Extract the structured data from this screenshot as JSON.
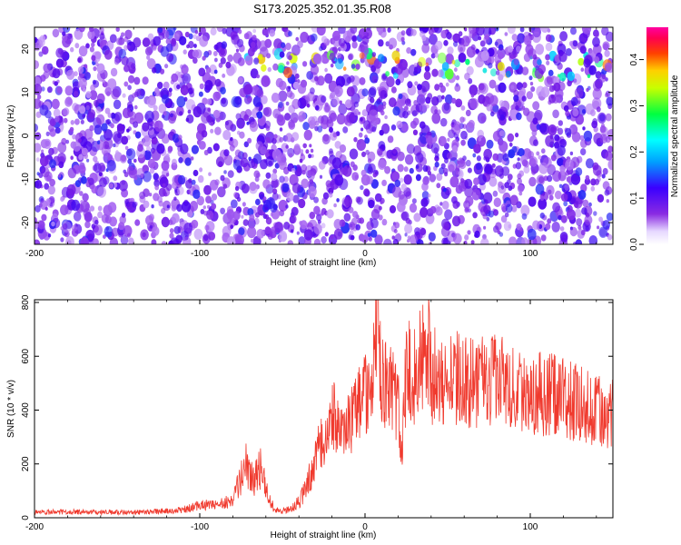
{
  "title": "S173.2025.352.01.35.R08",
  "chart_data": [
    {
      "type": "heatmap",
      "xlabel": "Height of straight line (km)",
      "ylabel": "Frequency (Hz)",
      "xlim": [
        -200,
        150
      ],
      "ylim": [
        -25,
        25
      ],
      "xticks": [
        -200,
        -100,
        0,
        100
      ],
      "yticks": [
        -20,
        -10,
        0,
        10,
        20
      ],
      "colorbar": {
        "label": "Normalized spectral amplitude",
        "range": [
          0.0,
          0.47
        ],
        "ticks": [
          0.0,
          0.1,
          0.2,
          0.3,
          0.4
        ],
        "colormap": "rainbow (white at low, purple, blue, cyan, green, yellow, red, magenta at high)"
      },
      "features": [
        {
          "x_range": [
            -75,
            150
          ],
          "y": 16,
          "description": "intermittent high-amplitude band near +16 Hz"
        },
        {
          "x_range": [
            -70,
            -60
          ],
          "y": 12,
          "description": "cyan/green blobs near +12 Hz"
        }
      ],
      "grid": false
    },
    {
      "type": "line",
      "xlabel": "Height of straight line (km)",
      "ylabel": "SNR (10 * v/v)",
      "xlim": [
        -200,
        150
      ],
      "ylim": [
        0,
        810
      ],
      "xticks": [
        -200,
        -100,
        0,
        100
      ],
      "yticks": [
        0,
        200,
        400,
        600,
        800
      ],
      "grid": false,
      "color": "#f03a2e",
      "series": [
        {
          "x": [
            -200,
            -180,
            -160,
            -140,
            -120,
            -110,
            -100,
            -90,
            -80,
            -75,
            -72,
            -68,
            -65,
            -62,
            -60,
            -55,
            -50,
            -45,
            -40,
            -35,
            -30,
            -28,
            -25,
            -20,
            -15,
            -10,
            -5,
            0,
            5,
            7,
            10,
            15,
            20,
            22,
            25,
            30,
            35,
            38,
            40,
            45,
            50,
            55,
            60,
            70,
            80,
            90,
            100,
            110,
            120,
            130,
            140,
            150
          ],
          "y": [
            20,
            22,
            20,
            20,
            25,
            30,
            45,
            50,
            60,
            150,
            200,
            140,
            160,
            200,
            110,
            30,
            25,
            35,
            60,
            120,
            250,
            300,
            250,
            400,
            300,
            350,
            400,
            450,
            500,
            810,
            500,
            480,
            420,
            250,
            560,
            520,
            600,
            650,
            520,
            540,
            500,
            520,
            500,
            500,
            520,
            490,
            470,
            460,
            440,
            420,
            400,
            390
          ]
        }
      ]
    }
  ]
}
